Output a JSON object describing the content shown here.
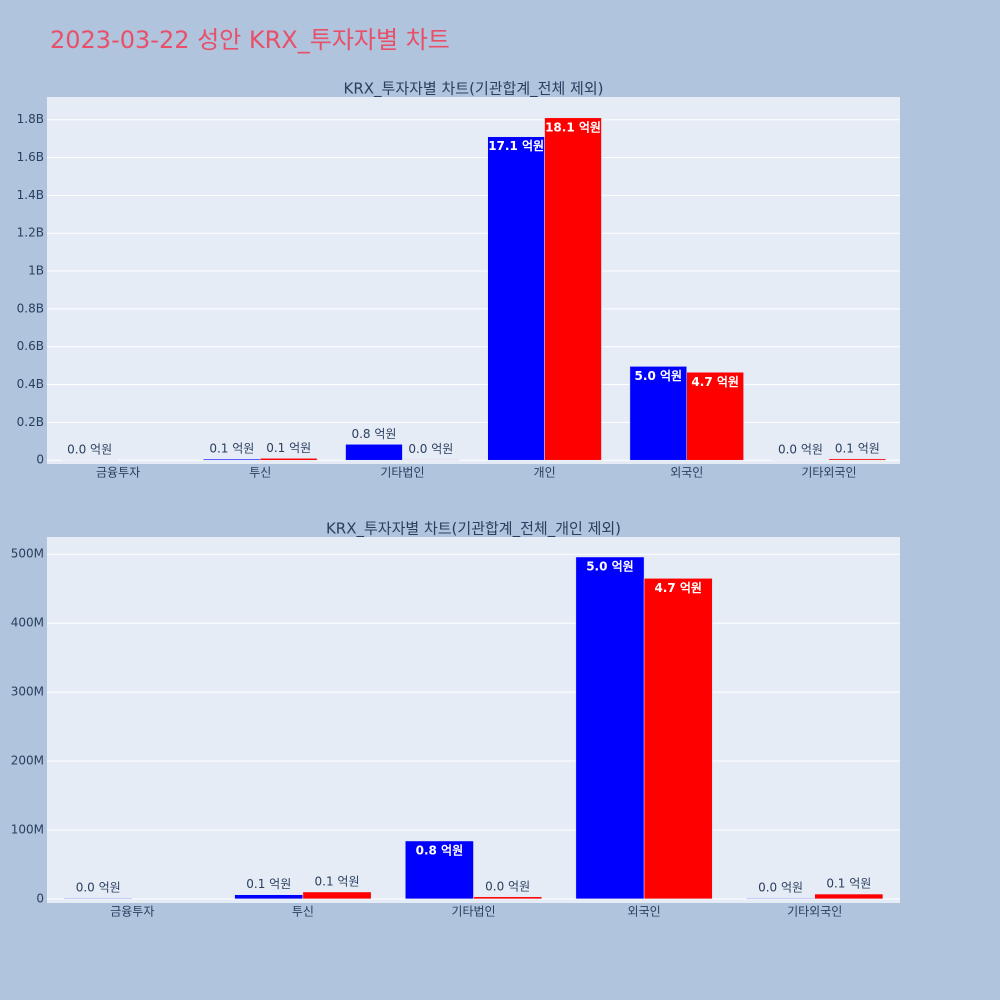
{
  "title": "2023-03-22 성안 KRX_투자자별 차트",
  "chart_data": [
    {
      "type": "bar",
      "title": "KRX_투자자별 차트(기관합계_전체 제외)",
      "categories": [
        "금융투자",
        "투신",
        "기타법인",
        "개인",
        "외국인",
        "기타외국인"
      ],
      "series": [
        {
          "color": "blue",
          "values": [
            1000000,
            6000000,
            84000000,
            1710000000,
            496000000,
            1000000
          ],
          "value_labels": [
            "0.0 억원",
            "0.1 억원",
            "0.8 억원",
            "17.1 억원",
            "5.0 억원",
            "0.0 억원"
          ]
        },
        {
          "color": "red",
          "values": [
            null,
            10000000,
            3000000,
            1810000000,
            465000000,
            7000000
          ],
          "value_labels": [
            null,
            "0.1 억원",
            "0.0 억원",
            "18.1 억원",
            "4.7 억원",
            "0.1 억원"
          ]
        }
      ],
      "ylim": [
        -20000000,
        1920000000
      ],
      "yticks": [
        0,
        {
          "value": 200000000,
          "label": "0.2B"
        },
        {
          "value": 400000000,
          "label": "0.4B"
        },
        {
          "value": 600000000,
          "label": "0.6B"
        },
        {
          "value": 800000000,
          "label": "0.8B"
        },
        {
          "value": 1000000000,
          "label": "1B"
        },
        {
          "value": 1200000000,
          "label": "1.2B"
        },
        {
          "value": 1400000000,
          "label": "1.4B"
        },
        {
          "value": 1600000000,
          "label": "1.6B"
        },
        {
          "value": 1800000000,
          "label": "1.8B"
        }
      ],
      "grid": true
    },
    {
      "type": "bar",
      "title": "KRX_투자자별 차트(기관합계_전체_개인 제외)",
      "categories": [
        "금융투자",
        "투신",
        "기타법인",
        "외국인",
        "기타외국인"
      ],
      "series": [
        {
          "color": "blue",
          "values": [
            1000000,
            6000000,
            84000000,
            496000000,
            1000000
          ],
          "value_labels": [
            "0.0 억원",
            "0.1 억원",
            "0.8 억원",
            "5.0 억원",
            "0.0 억원"
          ]
        },
        {
          "color": "red",
          "values": [
            null,
            10000000,
            3000000,
            465000000,
            7000000
          ],
          "value_labels": [
            null,
            "0.1 억원",
            "0.0 억원",
            "4.7 억원",
            "0.1 억원"
          ]
        }
      ],
      "ylim": [
        -6000000,
        525000000
      ],
      "yticks": [
        0,
        {
          "value": 100000000,
          "label": "100M"
        },
        {
          "value": 200000000,
          "label": "200M"
        },
        {
          "value": 300000000,
          "label": "300M"
        },
        {
          "value": 400000000,
          "label": "400M"
        },
        {
          "value": 500000000,
          "label": "500M"
        }
      ],
      "grid": true
    }
  ]
}
